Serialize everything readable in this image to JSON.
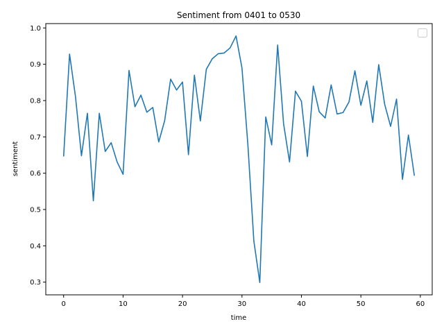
{
  "chart_data": {
    "type": "line",
    "title": "Sentiment from 0401 to 0530",
    "xlabel": "time",
    "ylabel": "sentiment",
    "xlim": [
      -3,
      62
    ],
    "ylim": [
      0.265,
      1.012
    ],
    "xticks": [
      0,
      10,
      20,
      30,
      40,
      50,
      60
    ],
    "xtick_labels": [
      "0",
      "10",
      "20",
      "30",
      "40",
      "50",
      "60"
    ],
    "yticks": [
      0.3,
      0.4,
      0.5,
      0.6,
      0.7,
      0.8,
      0.9,
      1.0
    ],
    "ytick_labels": [
      "0.3",
      "0.4",
      "0.5",
      "0.6",
      "0.7",
      "0.8",
      "0.9",
      "1.0"
    ],
    "grid": false,
    "legend": "upper right (empty)",
    "line_color": "#1f77b4",
    "series": [
      {
        "x": [
          0,
          1,
          2,
          3,
          4,
          5,
          6,
          7,
          8,
          9,
          10,
          11,
          12,
          13,
          14,
          15,
          16,
          17,
          18,
          19,
          20,
          21,
          22,
          23,
          24,
          25,
          26,
          27,
          28,
          29,
          30,
          31,
          32,
          33,
          34,
          35,
          36,
          37,
          38,
          39,
          40,
          41,
          42,
          43,
          44,
          45,
          46,
          47,
          48,
          49,
          50,
          51,
          52,
          53,
          54,
          55,
          56,
          57,
          58,
          59
        ],
        "values": [
          0.646,
          0.928,
          0.81,
          0.648,
          0.765,
          0.524,
          0.765,
          0.66,
          0.684,
          0.631,
          0.597,
          0.883,
          0.783,
          0.815,
          0.768,
          0.781,
          0.686,
          0.745,
          0.859,
          0.829,
          0.851,
          0.651,
          0.87,
          0.744,
          0.886,
          0.915,
          0.929,
          0.931,
          0.945,
          0.978,
          0.89,
          0.677,
          0.413,
          0.299,
          0.755,
          0.678,
          0.953,
          0.736,
          0.631,
          0.826,
          0.798,
          0.646,
          0.84,
          0.769,
          0.752,
          0.843,
          0.763,
          0.767,
          0.796,
          0.882,
          0.787,
          0.854,
          0.74,
          0.899,
          0.79,
          0.729,
          0.804,
          0.583,
          0.705,
          0.593
        ]
      }
    ]
  }
}
